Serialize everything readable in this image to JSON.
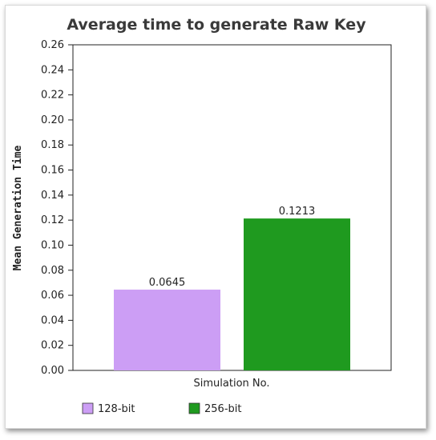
{
  "chart_data": {
    "type": "bar",
    "title": "Average time to generate Raw Key",
    "xlabel": "Simulation No.",
    "ylabel": "Mean Generation Time",
    "ylim": [
      0,
      0.26
    ],
    "yticks": [
      "0.00",
      "0.02",
      "0.04",
      "0.06",
      "0.08",
      "0.10",
      "0.12",
      "0.14",
      "0.16",
      "0.18",
      "0.20",
      "0.22",
      "0.24",
      "0.26"
    ],
    "grid": false,
    "legend_position": "bottom-left",
    "series": [
      {
        "name": "128-bit",
        "values": [
          0.0645
        ],
        "label": "0.0645",
        "color": "#cc9ef5"
      },
      {
        "name": "256-bit",
        "values": [
          0.1213
        ],
        "label": "0.1213",
        "color": "#1f9a1f"
      }
    ]
  }
}
